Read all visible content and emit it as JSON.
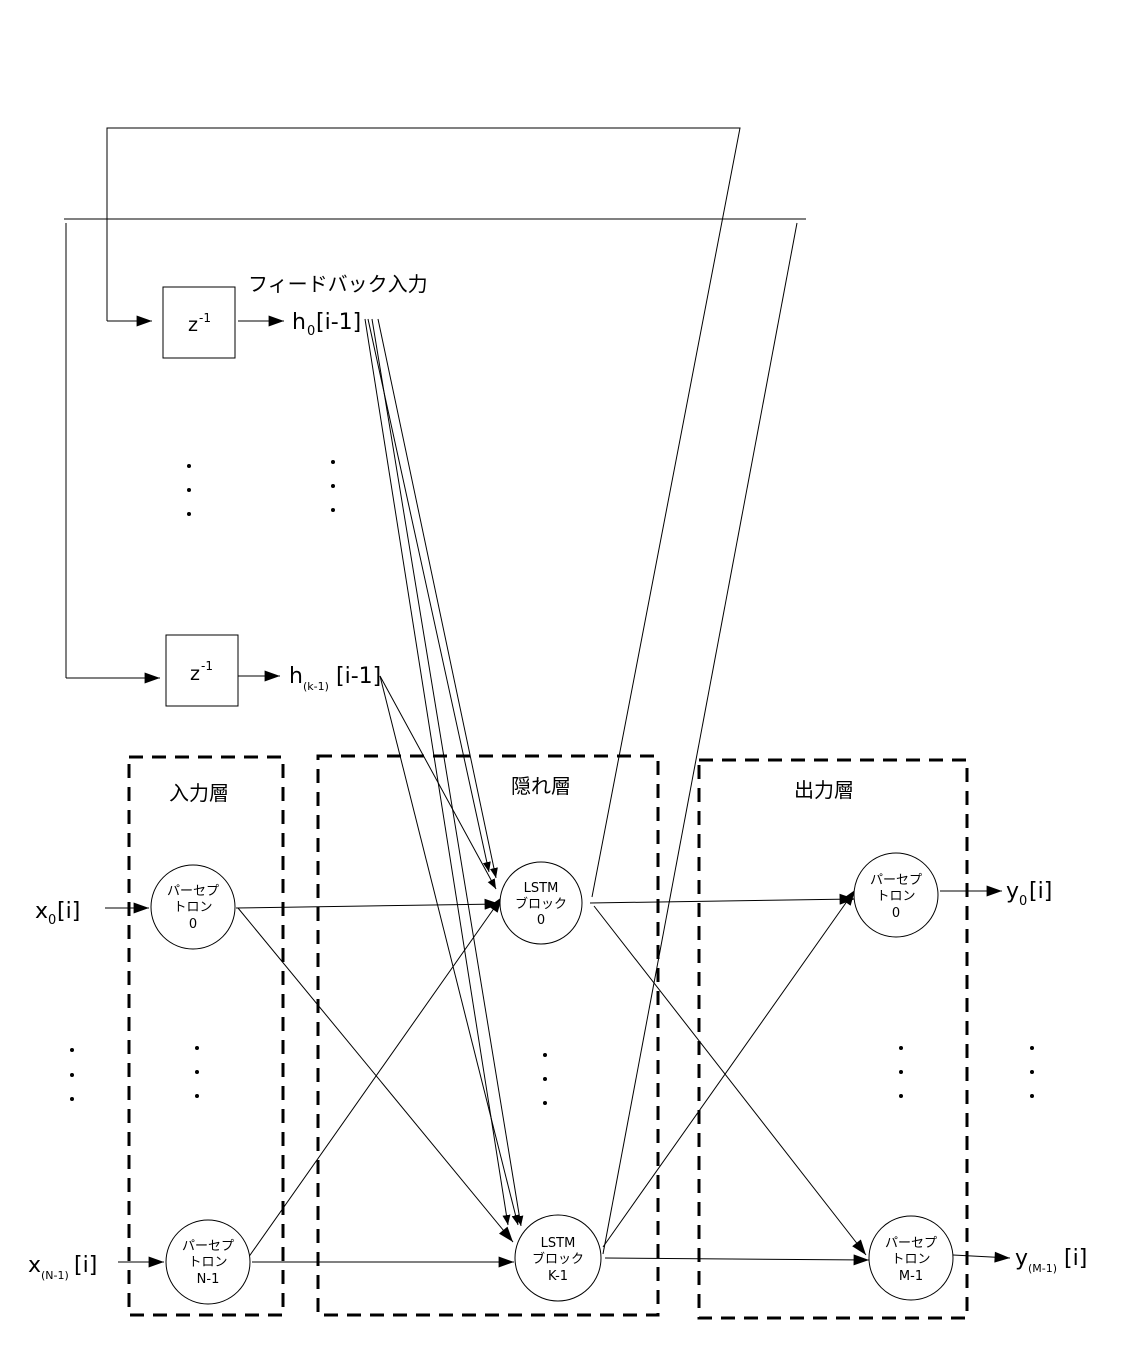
{
  "layers": {
    "input": "入力層",
    "hidden": "隠れ層",
    "output": "出力層"
  },
  "feedback": {
    "title": "フィードバック入力",
    "delay_symbol": "z",
    "delay_exp": "-1",
    "h_top": {
      "base": "h",
      "sub": "0",
      "suffix": "[i-1]"
    },
    "h_bottom": {
      "base": "h",
      "sub": "(k-1)",
      "suffix": "[i-1]"
    }
  },
  "inputs": [
    {
      "base": "x",
      "sub": "0",
      "suffix": "[i]"
    },
    {
      "base": "x",
      "sub": "(N-1)",
      "suffix": "[i]"
    }
  ],
  "outputs": [
    {
      "base": "y",
      "sub": "0",
      "suffix": "[i]"
    },
    {
      "base": "y",
      "sub": "(M-1)",
      "suffix": "[i]"
    }
  ],
  "nodes": {
    "in0": [
      "パーセプ",
      "トロン",
      "0"
    ],
    "inN": [
      "パーセプ",
      "トロン",
      "N-1"
    ],
    "lstm0": [
      "LSTM",
      "ブロック",
      "0"
    ],
    "lstmK": [
      "LSTM",
      "ブロック",
      "K-1"
    ],
    "out0": [
      "パーセプ",
      "トロン",
      "0"
    ],
    "outM": [
      "パーセプ",
      "トロン",
      "M-1"
    ]
  }
}
